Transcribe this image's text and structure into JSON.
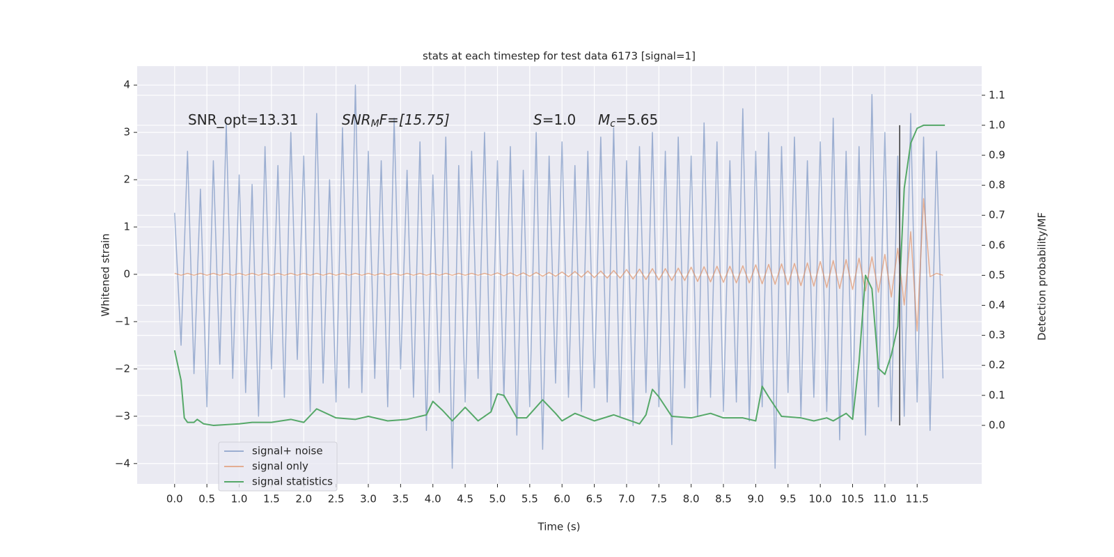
{
  "chart_data": {
    "type": "line",
    "title": "stats at each timestep for test data 6173 [signal=1]",
    "xlabel": "Time (s)",
    "ylabel": "Whitened strain",
    "y2label": "Detection probability/MF",
    "annotations": [
      {
        "text": "SNR_opt=13.31"
      },
      {
        "base": "SNR",
        "sub": "M",
        "rest": "F=[15.75]"
      },
      {
        "base": "S",
        "rest": "=1.0"
      },
      {
        "base": "M",
        "sub": "c",
        "rest": "=5.65"
      }
    ],
    "x": [
      0.0,
      0.1,
      0.2,
      0.3,
      0.4,
      0.5,
      0.6,
      0.7,
      0.8,
      0.9,
      1.0,
      1.1,
      1.2,
      1.3,
      1.4,
      1.5,
      1.6,
      1.7,
      1.8,
      1.9,
      2.0,
      2.1,
      2.2,
      2.3,
      2.4,
      2.5,
      2.6,
      2.7,
      2.8,
      2.9,
      3.0,
      3.1,
      3.2,
      3.3,
      3.4,
      3.5,
      3.6,
      3.7,
      3.8,
      3.9,
      4.0,
      4.1,
      4.2,
      4.3,
      4.4,
      4.5,
      4.6,
      4.7,
      4.8,
      4.9,
      5.0,
      5.1,
      5.2,
      5.3,
      5.4,
      5.5,
      5.6,
      5.7,
      5.8,
      5.9,
      6.0,
      6.1,
      6.2,
      6.3,
      6.4,
      6.5,
      6.6,
      6.7,
      6.8,
      6.9,
      7.0,
      7.1,
      7.2,
      7.3,
      7.4,
      7.5,
      7.6,
      7.7,
      7.8,
      7.9,
      8.0,
      8.1,
      8.2,
      8.3,
      8.4,
      8.5,
      8.6,
      8.7,
      8.8,
      8.9,
      9.0,
      9.1,
      9.2,
      9.3,
      9.4,
      9.5,
      9.6,
      9.7,
      9.8,
      9.9,
      10.0,
      10.1,
      10.2,
      10.3,
      10.4,
      10.5,
      10.6,
      10.7,
      10.8,
      10.9,
      11.0,
      11.1,
      11.2,
      11.3,
      11.4,
      11.5,
      11.6,
      11.7,
      11.8,
      11.9
    ],
    "series": [
      {
        "name": "signal+ noise",
        "color": "#4c72b0",
        "values": [
          1.3,
          -1.5,
          2.6,
          -2.1,
          1.8,
          -2.8,
          2.4,
          -1.9,
          3.2,
          -2.2,
          2.1,
          -2.5,
          1.9,
          -3.0,
          2.7,
          -2.0,
          2.3,
          -2.6,
          3.0,
          -1.8,
          2.5,
          -2.9,
          3.4,
          -2.3,
          2.0,
          -2.7,
          3.1,
          -2.4,
          4.0,
          -2.5,
          2.6,
          -2.2,
          2.4,
          -2.8,
          3.3,
          -2.0,
          2.2,
          -2.6,
          2.8,
          -3.3,
          2.1,
          -2.5,
          2.9,
          -4.1,
          2.3,
          -2.7,
          2.6,
          -2.2,
          3.0,
          -2.9,
          2.4,
          -2.6,
          2.7,
          -3.4,
          2.2,
          -2.8,
          3.0,
          -3.7,
          2.5,
          -2.3,
          2.8,
          -2.6,
          2.3,
          -2.9,
          2.6,
          -2.4,
          2.9,
          -2.7,
          3.1,
          -3.0,
          2.4,
          -3.2,
          2.7,
          -2.5,
          3.0,
          -2.8,
          2.6,
          -3.6,
          2.9,
          -2.4,
          2.5,
          -3.0,
          3.2,
          -2.6,
          2.8,
          -2.9,
          2.4,
          -2.7,
          3.5,
          -3.1,
          2.6,
          -2.8,
          3.0,
          -4.1,
          2.7,
          -2.5,
          2.9,
          -3.0,
          2.4,
          -2.6,
          2.8,
          -2.9,
          3.3,
          -3.5,
          2.6,
          -3.0,
          2.7,
          -3.4,
          3.8,
          -2.8,
          3.0,
          -3.1,
          2.5,
          -3.0,
          3.4,
          -2.7,
          2.9,
          -3.3,
          2.6,
          -2.2
        ]
      },
      {
        "name": "signal only",
        "color": "#dd8452",
        "values": [
          0.02,
          -0.02,
          0.02,
          -0.02,
          0.02,
          -0.02,
          0.02,
          -0.02,
          0.02,
          -0.02,
          0.02,
          -0.02,
          0.02,
          -0.02,
          0.02,
          -0.02,
          0.02,
          -0.02,
          0.02,
          -0.02,
          0.02,
          -0.02,
          0.02,
          -0.02,
          0.02,
          -0.02,
          0.02,
          -0.02,
          0.02,
          -0.02,
          0.02,
          -0.02,
          0.02,
          -0.02,
          0.02,
          -0.02,
          0.02,
          -0.02,
          0.02,
          -0.02,
          0.02,
          -0.02,
          0.02,
          -0.02,
          0.02,
          -0.02,
          0.02,
          -0.02,
          0.02,
          -0.02,
          0.03,
          -0.03,
          0.03,
          -0.03,
          0.03,
          -0.04,
          0.04,
          -0.04,
          0.04,
          -0.04,
          0.05,
          -0.05,
          0.06,
          -0.06,
          0.07,
          -0.07,
          0.07,
          -0.08,
          0.08,
          -0.08,
          0.1,
          -0.1,
          0.11,
          -0.11,
          0.12,
          -0.12,
          0.12,
          -0.13,
          0.13,
          -0.13,
          0.15,
          -0.15,
          0.16,
          -0.16,
          0.17,
          -0.17,
          0.17,
          -0.18,
          0.18,
          -0.18,
          0.2,
          -0.2,
          0.21,
          -0.21,
          0.22,
          -0.22,
          0.23,
          -0.24,
          0.24,
          -0.25,
          0.27,
          -0.28,
          0.29,
          -0.3,
          0.31,
          -0.32,
          0.34,
          -0.35,
          0.37,
          -0.38,
          0.42,
          -0.48,
          0.55,
          -0.65,
          0.9,
          -1.2,
          1.6,
          -0.05,
          0.02,
          -0.02
        ]
      },
      {
        "name": "signal statistics",
        "color": "#55a868",
        "axis": "y2",
        "x": [
          0.0,
          0.1,
          0.15,
          0.2,
          0.3,
          0.35,
          0.45,
          0.6,
          1.0,
          1.2,
          1.5,
          1.8,
          2.0,
          2.2,
          2.5,
          2.8,
          3.0,
          3.3,
          3.6,
          3.9,
          4.0,
          4.15,
          4.3,
          4.5,
          4.7,
          4.9,
          5.0,
          5.1,
          5.3,
          5.45,
          5.7,
          5.9,
          6.0,
          6.2,
          6.5,
          6.8,
          7.0,
          7.2,
          7.3,
          7.4,
          7.5,
          7.7,
          8.0,
          8.3,
          8.5,
          8.8,
          9.0,
          9.1,
          9.2,
          9.4,
          9.7,
          9.9,
          10.1,
          10.2,
          10.4,
          10.5,
          10.6,
          10.7,
          10.8,
          10.9,
          11.0,
          11.1,
          11.2,
          11.3,
          11.4,
          11.5,
          11.6,
          11.93
        ],
        "values": [
          0.25,
          0.15,
          0.025,
          0.01,
          0.01,
          0.02,
          0.005,
          0.0,
          0.005,
          0.01,
          0.01,
          0.02,
          0.01,
          0.055,
          0.025,
          0.02,
          0.03,
          0.015,
          0.02,
          0.035,
          0.08,
          0.05,
          0.015,
          0.06,
          0.015,
          0.045,
          0.105,
          0.1,
          0.025,
          0.025,
          0.085,
          0.04,
          0.015,
          0.04,
          0.015,
          0.035,
          0.02,
          0.005,
          0.035,
          0.12,
          0.095,
          0.03,
          0.025,
          0.04,
          0.025,
          0.025,
          0.015,
          0.13,
          0.095,
          0.03,
          0.025,
          0.015,
          0.025,
          0.015,
          0.04,
          0.02,
          0.21,
          0.5,
          0.455,
          0.19,
          0.17,
          0.235,
          0.33,
          0.79,
          0.94,
          0.99,
          1.0,
          1.0
        ]
      }
    ],
    "vline": {
      "x": 11.23,
      "y2range": [
        0,
        1
      ],
      "color": "#333333"
    },
    "xlim": [
      -0.58,
      12.5
    ],
    "xticks": [
      {
        "value": 0,
        "label": "0.0"
      },
      0.5,
      {
        "value": 1,
        "label": "1.0"
      },
      1.5,
      {
        "value": 2,
        "label": "2.0"
      },
      2.5,
      {
        "value": 3,
        "label": "3.0"
      },
      3.5,
      {
        "value": 4,
        "label": "4.0"
      },
      4.5,
      {
        "value": 5,
        "label": "5.0"
      },
      5.5,
      {
        "value": 6,
        "label": "6.0"
      },
      6.5,
      {
        "value": 7,
        "label": "7.0"
      },
      7.5,
      {
        "value": 8,
        "label": "8.0"
      },
      8.5,
      {
        "value": 9,
        "label": "9.0"
      },
      9.5,
      {
        "value": 10,
        "label": "10.0"
      },
      10.5,
      {
        "value": 11,
        "label": "11.0"
      },
      11.5
    ],
    "ylim": [
      -4.43,
      4.4
    ],
    "yticks": [
      {
        "value": -4,
        "label": "−4"
      },
      {
        "value": -3,
        "label": "−3"
      },
      {
        "value": -2,
        "label": "−2"
      },
      {
        "value": -1,
        "label": "−1"
      },
      0,
      1,
      2,
      3,
      4
    ],
    "y2lim": [
      -0.195,
      1.197
    ],
    "y2ticks": [
      {
        "value": 0,
        "label": "0.0"
      },
      0.1,
      0.2,
      0.3,
      0.4,
      0.5,
      0.6,
      0.7,
      0.8,
      0.9,
      {
        "value": 1,
        "label": "1.0"
      },
      1.1
    ],
    "grid": true,
    "legend": "lower left",
    "background": "#eaeaf2"
  }
}
